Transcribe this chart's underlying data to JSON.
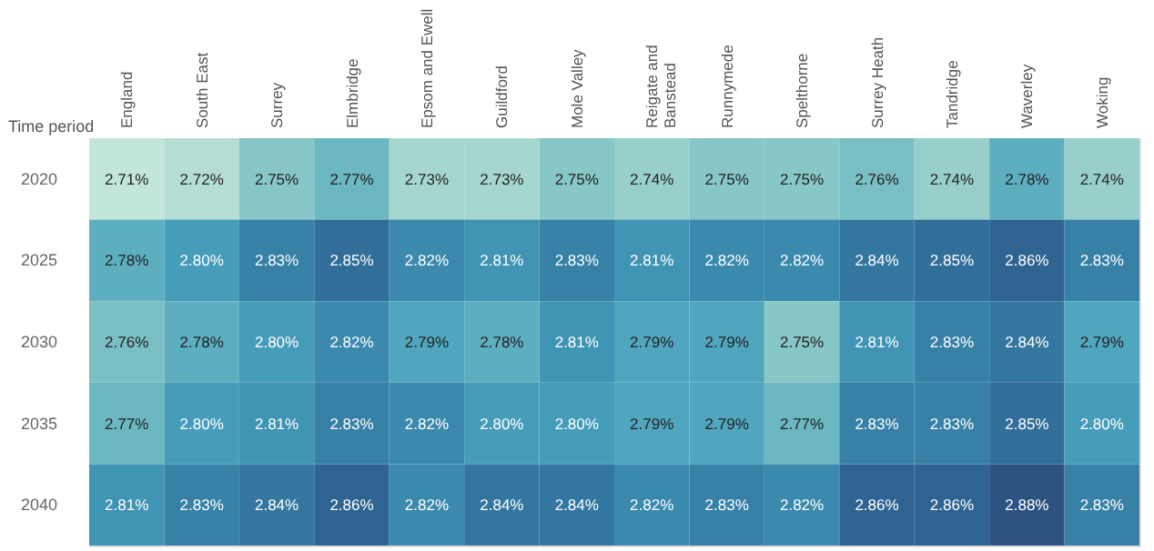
{
  "chart_data": {
    "type": "heatmap",
    "ylabel": "Time period",
    "categories": [
      "England",
      "South East",
      "Surrey",
      "Elmbridge",
      "Epsom and Ewell",
      "Guildford",
      "Mole Valley",
      "Reigate and Banstead",
      "Runnymede",
      "Spelthorne",
      "Surrey Heath",
      "Tandridge",
      "Waverley",
      "Woking"
    ],
    "y_categories": [
      "2020",
      "2025",
      "2030",
      "2035",
      "2040"
    ],
    "cells": [
      [
        2.71,
        2.72,
        2.75,
        2.77,
        2.73,
        2.73,
        2.75,
        2.74,
        2.75,
        2.75,
        2.76,
        2.74,
        2.78,
        2.74
      ],
      [
        2.78,
        2.8,
        2.83,
        2.85,
        2.82,
        2.81,
        2.83,
        2.81,
        2.82,
        2.82,
        2.84,
        2.85,
        2.86,
        2.83
      ],
      [
        2.76,
        2.78,
        2.8,
        2.82,
        2.79,
        2.78,
        2.81,
        2.79,
        2.79,
        2.75,
        2.81,
        2.83,
        2.84,
        2.79
      ],
      [
        2.77,
        2.8,
        2.81,
        2.83,
        2.82,
        2.8,
        2.8,
        2.79,
        2.79,
        2.77,
        2.83,
        2.83,
        2.85,
        2.8
      ],
      [
        2.81,
        2.83,
        2.84,
        2.86,
        2.82,
        2.84,
        2.84,
        2.82,
        2.83,
        2.82,
        2.86,
        2.86,
        2.88,
        2.83
      ]
    ],
    "cell_labels": [
      [
        "2.71%",
        "2.72%",
        "2.75%",
        "2.77%",
        "2.73%",
        "2.73%",
        "2.75%",
        "2.74%",
        "2.75%",
        "2.75%",
        "2.76%",
        "2.74%",
        "2.78%",
        "2.74%"
      ],
      [
        "2.78%",
        "2.80%",
        "2.83%",
        "2.85%",
        "2.82%",
        "2.81%",
        "2.83%",
        "2.81%",
        "2.82%",
        "2.82%",
        "2.84%",
        "2.85%",
        "2.86%",
        "2.83%"
      ],
      [
        "2.76%",
        "2.78%",
        "2.80%",
        "2.82%",
        "2.79%",
        "2.78%",
        "2.81%",
        "2.79%",
        "2.79%",
        "2.75%",
        "2.81%",
        "2.83%",
        "2.84%",
        "2.79%"
      ],
      [
        "2.77%",
        "2.80%",
        "2.81%",
        "2.83%",
        "2.82%",
        "2.80%",
        "2.80%",
        "2.79%",
        "2.79%",
        "2.77%",
        "2.83%",
        "2.83%",
        "2.85%",
        "2.80%"
      ],
      [
        "2.81%",
        "2.83%",
        "2.84%",
        "2.86%",
        "2.82%",
        "2.84%",
        "2.84%",
        "2.82%",
        "2.83%",
        "2.82%",
        "2.86%",
        "2.86%",
        "2.88%",
        "2.83%"
      ]
    ]
  }
}
